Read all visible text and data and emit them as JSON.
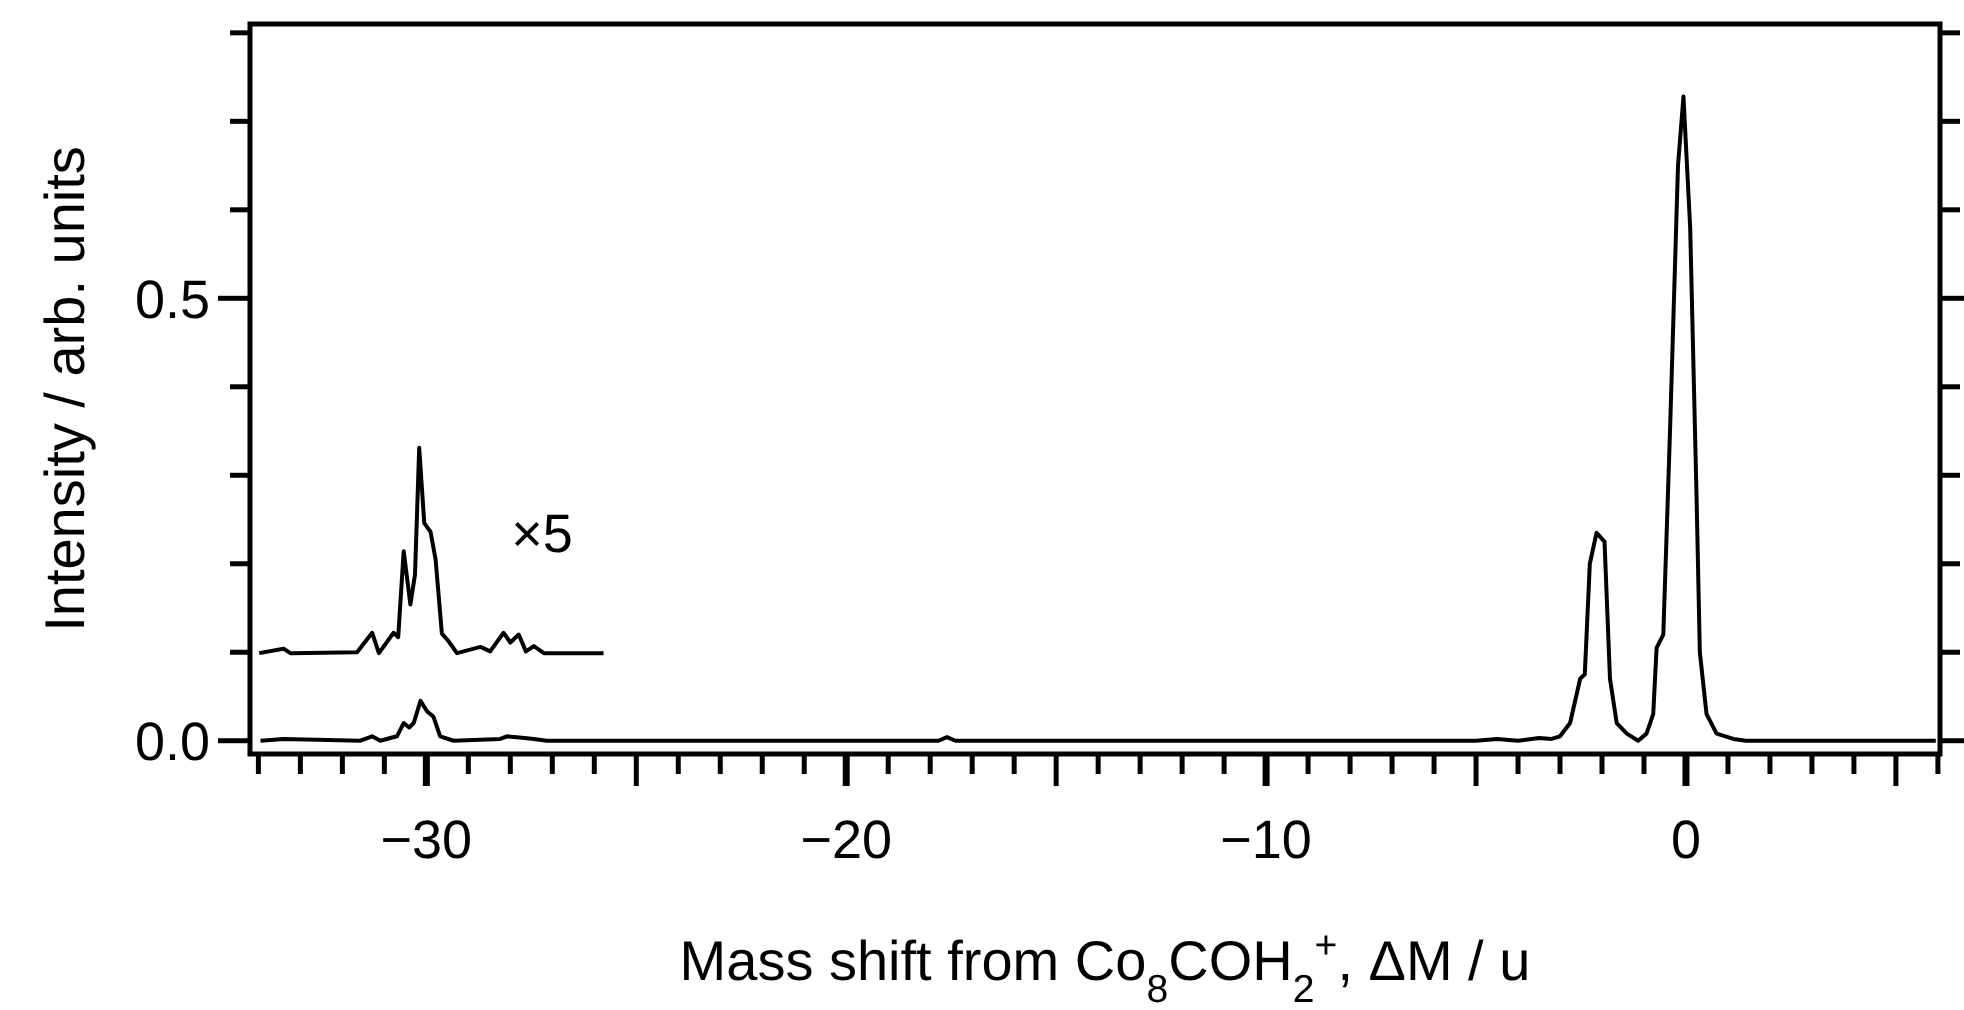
{
  "chart_data": {
    "type": "line",
    "xlabel": "Mass shift from Co$_{8}$COH$_{2}$$^{+}$, ΔM / u",
    "ylabel": "Intensity / arb. units",
    "xlim": [
      -34.2,
      6.05
    ],
    "ylim": [
      -0.015,
      0.81
    ],
    "xticks": [
      {
        "value": -34,
        "label": null
      },
      {
        "value": -33,
        "label": null
      },
      {
        "value": -32,
        "label": null
      },
      {
        "value": -31,
        "label": null
      },
      {
        "value": -30,
        "label": "−30"
      },
      {
        "value": -29,
        "label": null
      },
      {
        "value": -28,
        "label": null
      },
      {
        "value": -27,
        "label": null
      },
      {
        "value": -26,
        "label": null
      },
      {
        "value": -25,
        "label": null
      },
      {
        "value": -24,
        "label": null
      },
      {
        "value": -23,
        "label": null
      },
      {
        "value": -22,
        "label": null
      },
      {
        "value": -21,
        "label": null
      },
      {
        "value": -20,
        "label": "−20"
      },
      {
        "value": -19,
        "label": null
      },
      {
        "value": -18,
        "label": null
      },
      {
        "value": -17,
        "label": null
      },
      {
        "value": -16,
        "label": null
      },
      {
        "value": -15,
        "label": null
      },
      {
        "value": -14,
        "label": null
      },
      {
        "value": -13,
        "label": null
      },
      {
        "value": -12,
        "label": null
      },
      {
        "value": -11,
        "label": null
      },
      {
        "value": -10,
        "label": "−10"
      },
      {
        "value": -9,
        "label": null
      },
      {
        "value": -8,
        "label": null
      },
      {
        "value": -7,
        "label": null
      },
      {
        "value": -6,
        "label": null
      },
      {
        "value": -5,
        "label": null
      },
      {
        "value": -4,
        "label": null
      },
      {
        "value": -3,
        "label": null
      },
      {
        "value": -2,
        "label": null
      },
      {
        "value": -1,
        "label": null
      },
      {
        "value": 0,
        "label": "0"
      },
      {
        "value": 1,
        "label": null
      },
      {
        "value": 2,
        "label": null
      },
      {
        "value": 3,
        "label": null
      },
      {
        "value": 4,
        "label": null
      },
      {
        "value": 5,
        "label": null
      },
      {
        "value": 6,
        "label": null
      }
    ],
    "yticks": [
      {
        "value": 0,
        "label": "0.0"
      },
      {
        "value": 0.1,
        "label": null
      },
      {
        "value": 0.2,
        "label": null
      },
      {
        "value": 0.3,
        "label": null
      },
      {
        "value": 0.4,
        "label": null
      },
      {
        "value": 0.5,
        "label": "0.5"
      },
      {
        "value": 0.6,
        "label": null
      },
      {
        "value": 0.7,
        "label": null
      },
      {
        "value": 0.8,
        "label": null
      }
    ],
    "grid": false,
    "marker": "none",
    "line_style": "solid",
    "series": [
      {
        "color": "#000000",
        "x": [
          -33.95,
          -33.4,
          -31.57,
          -31.29,
          -31.1,
          -30.7,
          -30.54,
          -30.41,
          -30.3,
          -30.14,
          -29.98,
          -29.83,
          -29.67,
          -29.35,
          -28.24,
          -28.08,
          -27.84,
          -27.44,
          -27.13,
          -26,
          -17.8,
          -17.6,
          -17.4,
          -5,
          -4.5,
          -4,
          -3.5,
          -3.2,
          -3,
          -2.76,
          -2.52,
          -2.41,
          -2.29,
          -2.13,
          -1.94,
          -1.81,
          -1.65,
          -1.41,
          -1.14,
          -0.94,
          -0.78,
          -0.7,
          -0.54,
          -0.38,
          -0.19,
          -0.06,
          0.1,
          0.25,
          0.33,
          0.49,
          0.73,
          1.13,
          1.43,
          5.95
        ],
        "values": [
          0,
          0.002,
          0,
          0.005,
          0,
          0.005,
          0.02,
          0.015,
          0.02,
          0.045,
          0.033,
          0.027,
          0.005,
          0,
          0.002,
          0.005,
          0.004,
          0.002,
          0,
          0,
          0,
          0.004,
          0,
          0,
          0.002,
          0,
          0.003,
          0.002,
          0.005,
          0.02,
          0.07,
          0.075,
          0.2,
          0.235,
          0.225,
          0.07,
          0.02,
          0.008,
          0,
          0.008,
          0.03,
          0.105,
          0.12,
          0.35,
          0.65,
          0.728,
          0.58,
          0.28,
          0.1,
          0.03,
          0.008,
          0.002,
          0,
          0
        ]
      },
      {
        "name": "×5",
        "color": "#000000",
        "x": [
          -33.98,
          -33.4,
          -33.24,
          -31.65,
          -31.29,
          -31.13,
          -30.78,
          -30.67,
          -30.54,
          -30.38,
          -30.27,
          -30.17,
          -30.05,
          -29.9,
          -29.78,
          -29.63,
          -29.48,
          -29.27,
          -29.11,
          -28.71,
          -28.48,
          -28.16,
          -28.0,
          -27.8,
          -27.63,
          -27.44,
          -27.2,
          -25.78
        ],
        "values": [
          0.099,
          0.104,
          0.099,
          0.1,
          0.122,
          0.099,
          0.122,
          0.117,
          0.214,
          0.154,
          0.188,
          0.331,
          0.246,
          0.236,
          0.205,
          0.121,
          0.113,
          0.099,
          0.101,
          0.106,
          0.101,
          0.122,
          0.111,
          0.12,
          0.101,
          0.107,
          0.099,
          0.099
        ]
      }
    ]
  }
}
